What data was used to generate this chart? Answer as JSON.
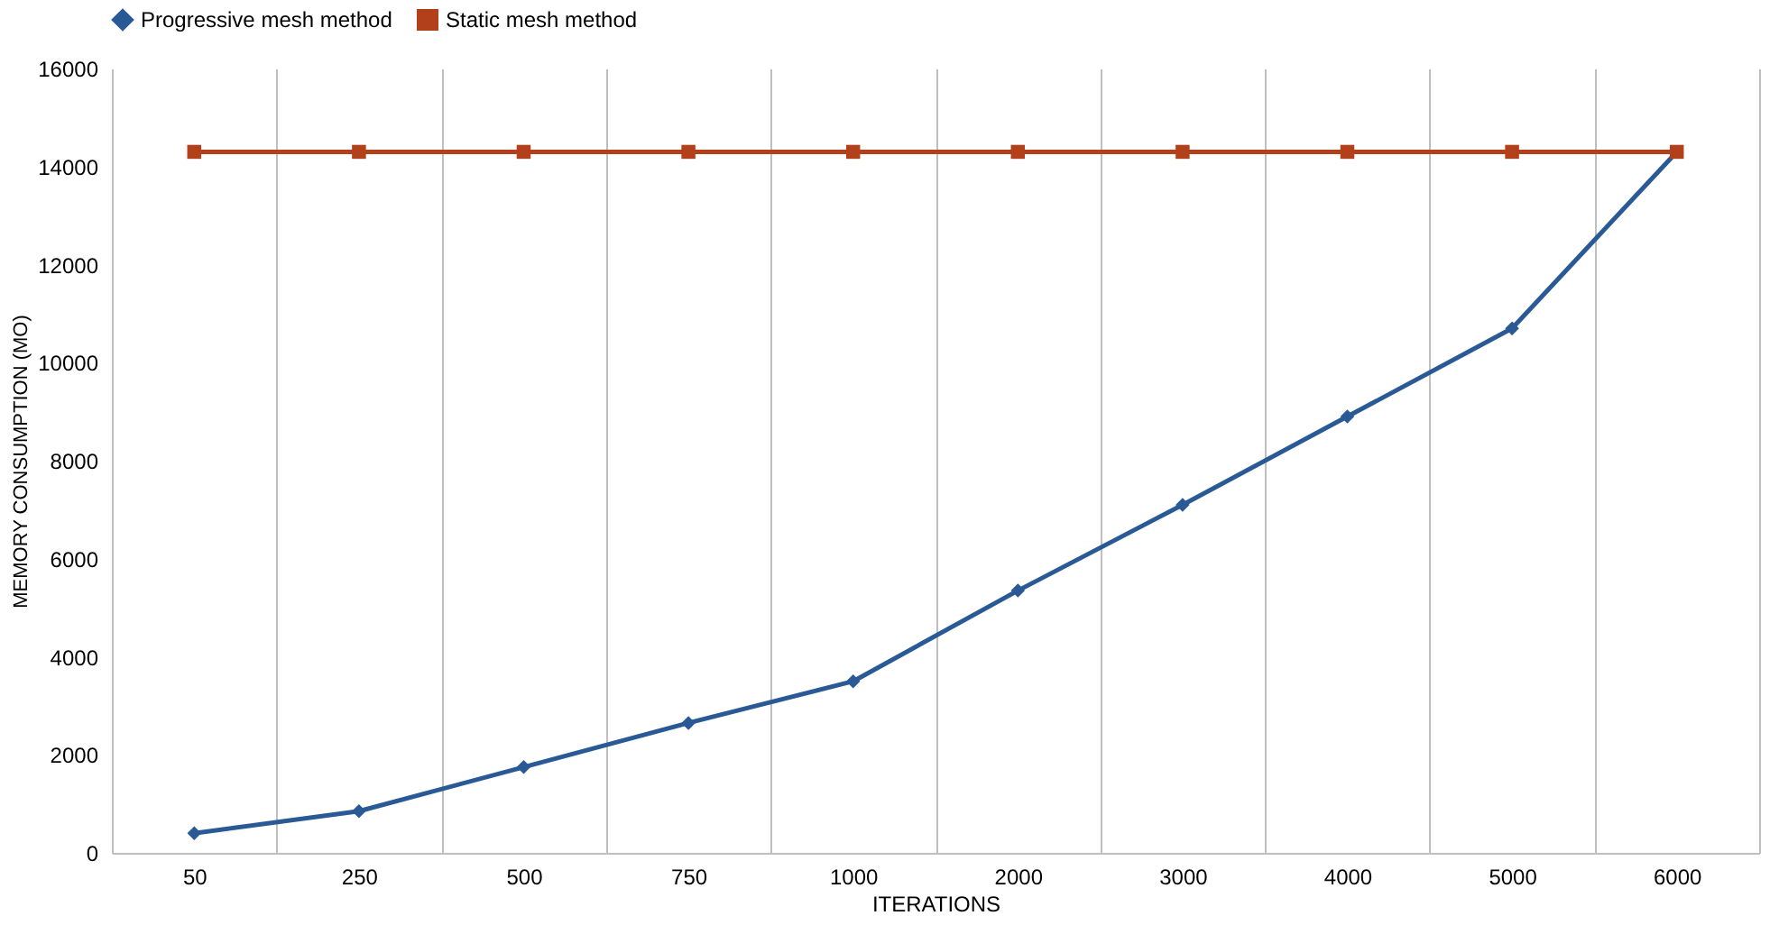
{
  "chart_data": {
    "type": "line",
    "xlabel": "ITERATIONS",
    "ylabel": "MEMORY CONSUMPTION (MO)",
    "categories": [
      "50",
      "250",
      "500",
      "750",
      "1000",
      "2000",
      "3000",
      "4000",
      "5000",
      "6000"
    ],
    "series": [
      {
        "name": "Progressive mesh method",
        "color": "#2a5a96",
        "marker": "diamond",
        "values": [
          400,
          850,
          1750,
          2650,
          3500,
          5350,
          7100,
          8900,
          10700,
          14300
        ]
      },
      {
        "name": "Static mesh method",
        "color": "#b2401a",
        "marker": "square",
        "values": [
          14300,
          14300,
          14300,
          14300,
          14300,
          14300,
          14300,
          14300,
          14300,
          14300
        ]
      }
    ],
    "ylim": [
      0,
      16000
    ],
    "yticks": [
      0,
      2000,
      4000,
      6000,
      8000,
      10000,
      12000,
      14000,
      16000
    ],
    "grid": "x",
    "legend": "top",
    "line_style": "solid"
  }
}
